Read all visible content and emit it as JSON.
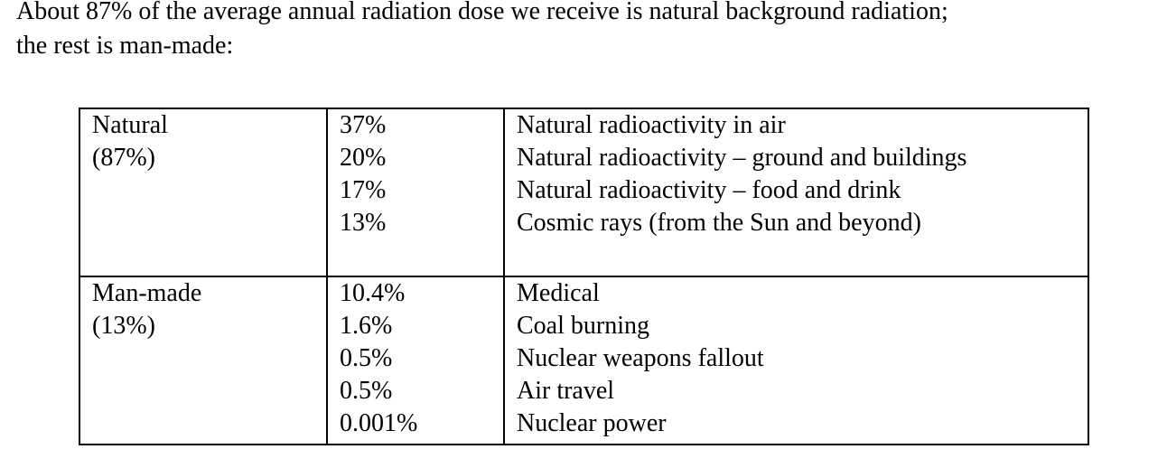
{
  "intro": {
    "line1": "About 87% of the average annual radiation dose we receive is natural background radiation;",
    "line2": "the rest is man-made:"
  },
  "table": {
    "groups": [
      {
        "label": "Natural",
        "share": "(87%)",
        "percents": [
          "37%",
          "20%",
          "17%",
          "13%"
        ],
        "sources": [
          "Natural radioactivity in air",
          "Natural radioactivity – ground and buildings",
          "Natural radioactivity – food and drink",
          "Cosmic rays (from the Sun and beyond)"
        ]
      },
      {
        "label": "Man-made",
        "share": "(13%)",
        "percents": [
          "10.4%",
          "1.6%",
          "0.5%",
          "0.5%",
          "0.001%"
        ],
        "sources": [
          "Medical",
          "Coal burning",
          "Nuclear weapons fallout",
          "Air travel",
          "Nuclear power"
        ]
      }
    ]
  }
}
